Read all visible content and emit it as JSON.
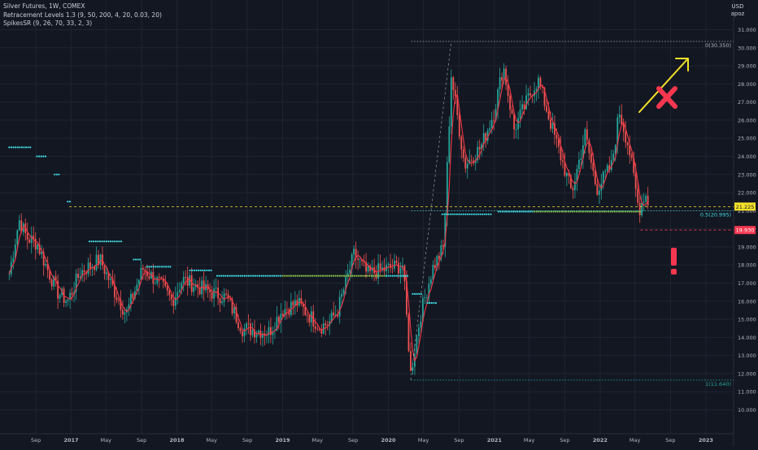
{
  "legend": {
    "title": "Silver Futures, 1W, COMEX",
    "indicator_1": "Retracement Levels 1.3 (9, 50, 200, 4, 20, 0.03, 20)",
    "indicator_2": "SpikesSR (9, 26, 70, 33, 2, 3)"
  },
  "currency": {
    "code": "USD",
    "sub": "apoz"
  },
  "colors": {
    "background": "#131722",
    "grid": "#1f2432",
    "axis_text": "#b2b5be",
    "up_candle": "#26a69a",
    "down_candle": "#ef5350",
    "ma_line": "#f23645",
    "sr_dots": "#3fd9e0",
    "sr_dots_green": "#8bc34a",
    "yellow": "#f5e12a",
    "red_mark": "#f7374f",
    "fib_line": "#b2b5be"
  },
  "chart_data": {
    "type": "candlestick",
    "title": "Silver Futures, 1W, COMEX",
    "ylabel": "USD",
    "ylim": [
      10,
      31.5
    ],
    "y_ticks": [
      "10.000",
      "11.000",
      "12.000",
      "13.000",
      "14.000",
      "15.000",
      "16.000",
      "17.000",
      "18.000",
      "19.000",
      "20.000",
      "21.000",
      "22.000",
      "23.000",
      "24.000",
      "25.000",
      "26.000",
      "27.000",
      "28.000",
      "29.000",
      "30.000",
      "31.000"
    ],
    "x_ticks": [
      "Sep",
      "2017",
      "May",
      "Sep",
      "2018",
      "May",
      "Sep",
      "2019",
      "May",
      "Sep",
      "2020",
      "May",
      "Sep",
      "2021",
      "May",
      "Sep",
      "2022",
      "May",
      "Sep",
      "2023"
    ],
    "grid": true,
    "price_path": [
      [
        "2016-06-01",
        17.5
      ],
      [
        "2016-07-05",
        20.5
      ],
      [
        "2016-08-01",
        19.5
      ],
      [
        "2016-09-05",
        19.2
      ],
      [
        "2016-10-10",
        17.8
      ],
      [
        "2016-11-15",
        16.5
      ],
      [
        "2016-12-20",
        16.0
      ],
      [
        "2017-02-01",
        17.6
      ],
      [
        "2017-04-10",
        18.3
      ],
      [
        "2017-06-01",
        16.5
      ],
      [
        "2017-07-10",
        15.3
      ],
      [
        "2017-09-05",
        17.8
      ],
      [
        "2017-11-01",
        17.0
      ],
      [
        "2017-12-15",
        16.0
      ],
      [
        "2018-01-20",
        17.2
      ],
      [
        "2018-04-10",
        16.6
      ],
      [
        "2018-06-20",
        16.2
      ],
      [
        "2018-08-15",
        14.5
      ],
      [
        "2018-11-15",
        14.3
      ],
      [
        "2018-12-30",
        15.5
      ],
      [
        "2019-02-20",
        15.9
      ],
      [
        "2019-05-10",
        14.6
      ],
      [
        "2019-06-10",
        14.8
      ],
      [
        "2019-07-10",
        15.5
      ],
      [
        "2019-09-05",
        18.6
      ],
      [
        "2019-10-20",
        17.5
      ],
      [
        "2019-12-30",
        17.8
      ],
      [
        "2020-02-20",
        18.0
      ],
      [
        "2020-03-18",
        12.0
      ],
      [
        "2020-04-20",
        15.2
      ],
      [
        "2020-06-01",
        17.8
      ],
      [
        "2020-07-10",
        19.0
      ],
      [
        "2020-08-05",
        28.5
      ],
      [
        "2020-09-20",
        23.5
      ],
      [
        "2020-11-15",
        24.5
      ],
      [
        "2020-12-30",
        26.4
      ],
      [
        "2021-02-01",
        29.0
      ],
      [
        "2021-03-10",
        25.5
      ],
      [
        "2021-05-15",
        27.8
      ],
      [
        "2021-06-01",
        28.2
      ],
      [
        "2021-07-20",
        25.5
      ],
      [
        "2021-09-25",
        22.0
      ],
      [
        "2021-11-10",
        25.2
      ],
      [
        "2021-12-20",
        22.2
      ],
      [
        "2022-02-10",
        23.5
      ],
      [
        "2022-03-08",
        26.5
      ],
      [
        "2022-04-10",
        24.5
      ],
      [
        "2022-05-15",
        21.0
      ],
      [
        "2022-06-05",
        22.0
      ],
      [
        "2022-06-20",
        21.2
      ]
    ],
    "annotations": {
      "current_price": "21.225",
      "fib_high_label": "0(30.350)",
      "fib_high": 30.35,
      "fib_mid_label": "0.5(20.995)",
      "fib_mid": 20.995,
      "fib_low_label": "1(11.640)",
      "fib_low": 11.64,
      "support_price": "19.930",
      "support": 19.93
    },
    "sr_levels": [
      {
        "y": 24.5,
        "from": "2016-06-01",
        "to": "2016-08-20"
      },
      {
        "y": 24.0,
        "from": "2016-09-05",
        "to": "2016-10-10"
      },
      {
        "y": 23.0,
        "from": "2016-11-05",
        "to": "2016-11-25"
      },
      {
        "y": 21.5,
        "from": "2016-12-20",
        "to": "2016-12-30"
      },
      {
        "y": 19.3,
        "from": "2017-03-05",
        "to": "2017-06-25"
      },
      {
        "y": 18.3,
        "from": "2017-08-05",
        "to": "2017-08-30"
      },
      {
        "y": 17.9,
        "from": "2017-09-20",
        "to": "2017-12-10"
      },
      {
        "y": 17.7,
        "from": "2018-02-15",
        "to": "2018-05-01"
      },
      {
        "y": 17.4,
        "from": "2018-05-20",
        "to": "2020-03-12"
      },
      {
        "y": 16.4,
        "from": "2020-03-25",
        "to": "2020-04-25"
      },
      {
        "y": 15.9,
        "from": "2020-05-15",
        "to": "2020-06-20"
      },
      {
        "y": 20.8,
        "from": "2020-07-05",
        "to": "2020-12-25"
      },
      {
        "y": 20.95,
        "from": "2021-01-15",
        "to": "2022-05-20"
      }
    ]
  }
}
